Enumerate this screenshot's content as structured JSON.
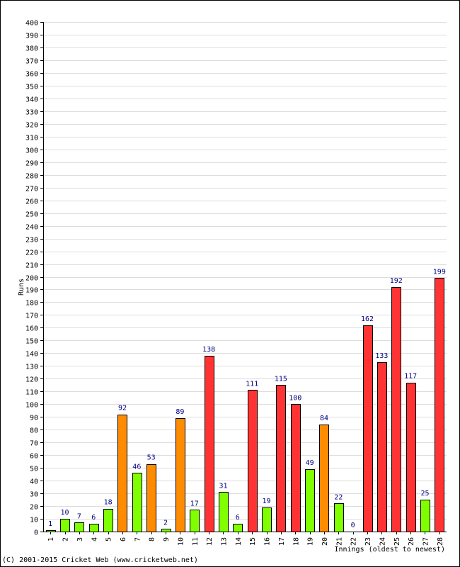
{
  "chart_data": {
    "type": "bar",
    "xlabel": "Innings (oldest to newest)",
    "ylabel": "Runs",
    "ylim": [
      0,
      400
    ],
    "ytick_step": 10,
    "grid": true,
    "categories": [
      "1",
      "2",
      "3",
      "4",
      "5",
      "6",
      "7",
      "8",
      "9",
      "10",
      "11",
      "12",
      "13",
      "14",
      "15",
      "16",
      "17",
      "18",
      "19",
      "20",
      "21",
      "22",
      "23",
      "24",
      "25",
      "26",
      "27",
      "28"
    ],
    "values": [
      1,
      10,
      7,
      6,
      18,
      92,
      46,
      53,
      2,
      89,
      17,
      138,
      31,
      6,
      111,
      19,
      115,
      100,
      49,
      84,
      22,
      0,
      162,
      133,
      192,
      117,
      25,
      199
    ],
    "bar_colors": [
      "#80ff00",
      "#80ff00",
      "#80ff00",
      "#80ff00",
      "#80ff00",
      "#ff8c00",
      "#80ff00",
      "#ff8c00",
      "#80ff00",
      "#ff8c00",
      "#80ff00",
      "#ff3333",
      "#80ff00",
      "#80ff00",
      "#ff3333",
      "#80ff00",
      "#ff3333",
      "#ff3333",
      "#80ff00",
      "#ff8c00",
      "#80ff00",
      "#80ff00",
      "#ff3333",
      "#ff3333",
      "#ff3333",
      "#ff3333",
      "#80ff00",
      "#ff3333"
    ]
  },
  "footer": {
    "copyright": "(C) 2001-2015 Cricket Web (www.cricketweb.net)"
  }
}
